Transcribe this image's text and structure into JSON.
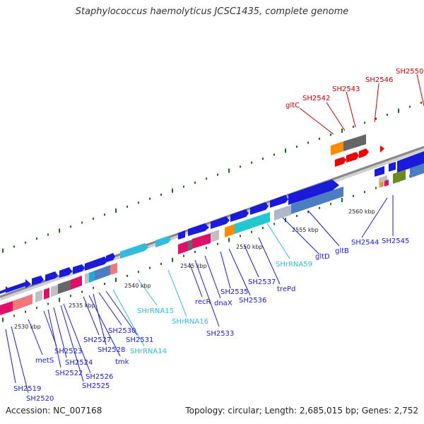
{
  "title": "Staphylococcus haemolyticus JCSC1435, complete genome",
  "footer": {
    "accession": "Accession: NC_007168",
    "summary": "Topology: circular; Length: 2,685,015 bp; Genes: 2,752"
  },
  "colors": {
    "forward_gene": "#1a1adb",
    "reverse_gene": "#1a1adb",
    "rna": "#33bbdd",
    "highlight": "#cc0000",
    "backbone": "#888888",
    "tick": "#1a6e1a"
  },
  "scale_labels": [
    "2530 kbp",
    "2535 kbp",
    "2540 kbp",
    "2545 kbp",
    "2550 kbp",
    "2555 kbp",
    "2560 kbp"
  ],
  "gene_labels": {
    "highlighted": [
      "gltC",
      "SH2542",
      "SH2543",
      "SH2546",
      "SH2550"
    ],
    "top_row": [
      "SH2519",
      "SH2520",
      "metS",
      "SH2523",
      "SH2522",
      "SH2524",
      "SH2526",
      "SH2525",
      "SH2527",
      "tmk",
      "SH2528",
      "SH2530",
      "SH2531",
      "SHrRNA14",
      "SHrRNA15",
      "SHrRNA16",
      "recR",
      "SH2533",
      "dnaX",
      "SH2535",
      "SH2536",
      "SH2537",
      "trePd",
      "SHrRNA59",
      "gltD",
      "gltB",
      "SH2544",
      "SH2545"
    ]
  }
}
